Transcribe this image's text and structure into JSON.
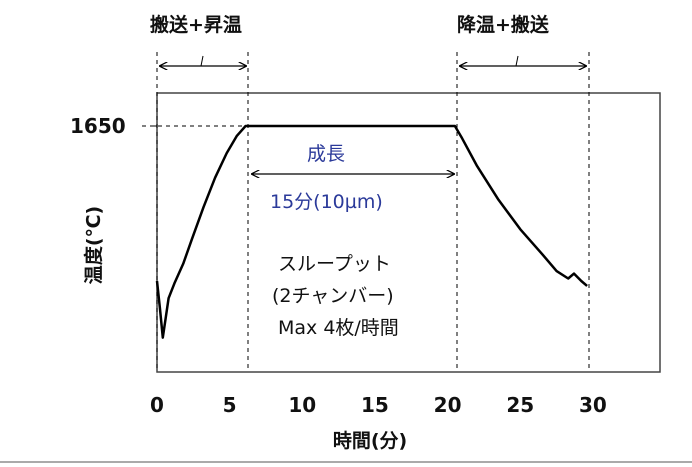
{
  "chart_data": {
    "type": "line",
    "title": "",
    "xlabel": "時間(分)",
    "ylabel": "温度(℃)",
    "xlim": [
      0,
      35
    ],
    "x_ticks": [
      0,
      5,
      10,
      15,
      20,
      25,
      30
    ],
    "y_ticks": [
      1650
    ],
    "y_max": 1650,
    "grid": false,
    "series": [
      {
        "name": "温度",
        "points": [
          [
            0.0,
            0.37
          ],
          [
            0.2,
            0.26
          ],
          [
            0.4,
            0.14
          ],
          [
            0.6,
            0.22
          ],
          [
            0.8,
            0.3
          ],
          [
            1.2,
            0.36
          ],
          [
            1.8,
            0.44
          ],
          [
            2.4,
            0.54
          ],
          [
            3.2,
            0.67
          ],
          [
            4.0,
            0.79
          ],
          [
            4.8,
            0.89
          ],
          [
            5.5,
            0.96
          ],
          [
            6.1,
            1.0
          ],
          [
            7.0,
            1.0
          ],
          [
            10.0,
            1.0
          ],
          [
            15.0,
            1.0
          ],
          [
            20.0,
            1.0
          ],
          [
            20.5,
            1.0
          ],
          [
            21.0,
            0.95
          ],
          [
            22.0,
            0.84
          ],
          [
            23.5,
            0.7
          ],
          [
            25.0,
            0.58
          ],
          [
            26.5,
            0.48
          ],
          [
            27.5,
            0.41
          ],
          [
            28.3,
            0.38
          ],
          [
            28.7,
            0.4
          ],
          [
            29.2,
            0.37
          ],
          [
            29.6,
            0.35
          ]
        ],
        "y_unit_note": "y values are fraction of 1650℃ scale above the plot baseline"
      }
    ],
    "annotations": {
      "top_left": "搬送+昇温",
      "top_right": "降温+搬送",
      "middle_title": "成長",
      "middle_span": "15分(10µm)",
      "throughput_line1": "スループット",
      "throughput_line2": "(2チャンバー)",
      "throughput_line3": "Max 4枚/時間"
    },
    "phase_boundaries_min": [
      0,
      6.4,
      20.6,
      30
    ],
    "colors": {
      "line": "#000000",
      "blue_text": "#2b3a9a",
      "dashed": "#000000"
    }
  }
}
